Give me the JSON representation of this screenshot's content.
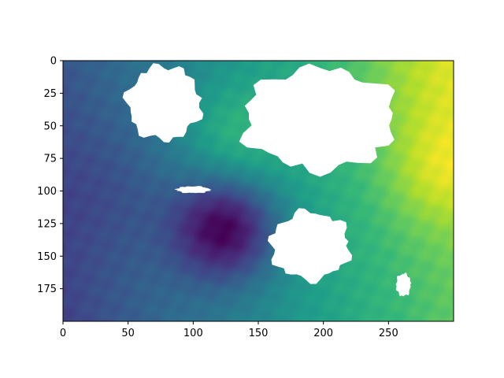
{
  "chart_data": {
    "type": "heatmap",
    "title": "",
    "xlabel": "",
    "ylabel": "",
    "colormap": "viridis",
    "colorbar": false,
    "grid": false,
    "x_range": [
      0,
      300
    ],
    "y_range": [
      0,
      200
    ],
    "y_inverted": true,
    "x_ticks": [
      0,
      50,
      100,
      150,
      200,
      250
    ],
    "x_tick_labels": [
      "0",
      "50",
      "100",
      "150",
      "200",
      "250"
    ],
    "y_ticks": [
      0,
      25,
      50,
      75,
      100,
      125,
      150,
      175
    ],
    "y_tick_labels": [
      "0",
      "25",
      "50",
      "75",
      "100",
      "125",
      "150",
      "175"
    ],
    "value_range": [
      0,
      1
    ],
    "field_features": [
      {
        "kind": "minimum",
        "x": 125,
        "y": 128,
        "value": 0.0
      },
      {
        "kind": "maximum",
        "x": 292,
        "y": 8,
        "value": 1.0
      },
      {
        "kind": "local-high",
        "x": 130,
        "y": 60,
        "value": 0.75
      },
      {
        "kind": "local-high",
        "x": 290,
        "y": 85,
        "value": 0.85
      },
      {
        "kind": "low-region",
        "x": 40,
        "y": 100,
        "value": 0.45
      }
    ],
    "masked_regions": [
      {
        "name": "north-west-island",
        "x_extent": [
          45,
          110
        ],
        "y_extent": [
          0,
          65
        ]
      },
      {
        "name": "north-east-landmass",
        "x_extent": [
          130,
          265
        ],
        "y_extent": [
          0,
          90
        ]
      },
      {
        "name": "small-islet",
        "x_extent": [
          85,
          115
        ],
        "y_extent": [
          96,
          102
        ]
      },
      {
        "name": "southern-island",
        "x_extent": [
          155,
          225
        ],
        "y_extent": [
          112,
          172
        ]
      },
      {
        "name": "south-east-islet",
        "x_extent": [
          255,
          268
        ],
        "y_extent": [
          162,
          182
        ]
      }
    ]
  },
  "colors": {
    "viridis_stops": [
      "#440154",
      "#482878",
      "#3e4989",
      "#31688e",
      "#26828e",
      "#1f9e89",
      "#35b779",
      "#6ece58",
      "#b5de2b",
      "#fde725"
    ],
    "mask": "#ffffff",
    "axis": "#000000"
  }
}
